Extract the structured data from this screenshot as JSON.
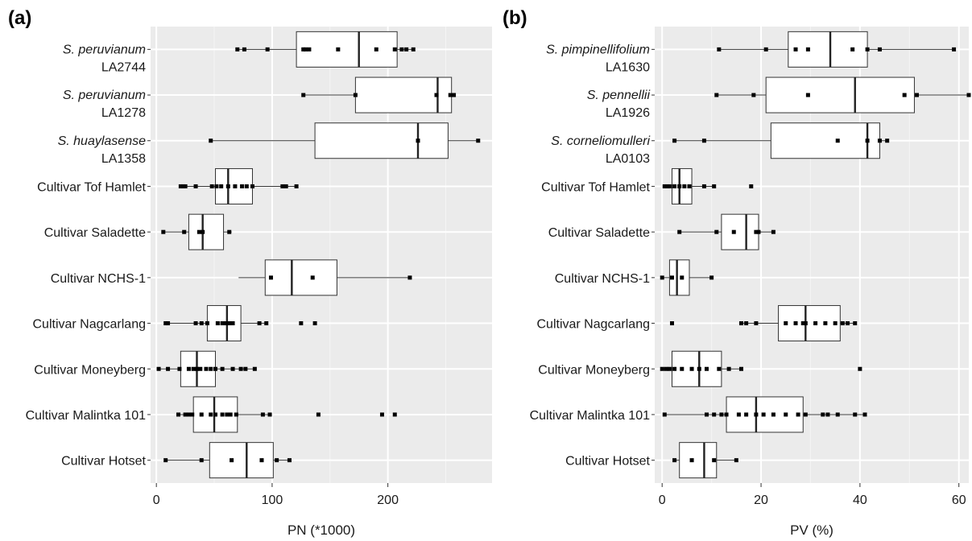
{
  "chart_data": [
    {
      "type": "box",
      "panel_label": "(a)",
      "xlabel": "PN (*1000)",
      "xlim": [
        -5,
        290
      ],
      "xticks": [
        0,
        100,
        200
      ],
      "tick_labels": [
        "0",
        "100",
        "200"
      ],
      "grid": true,
      "categories": [
        {
          "label": [
            "S. peruvianum",
            "LA2744"
          ],
          "italic_first": true,
          "q1": 121,
          "median": 175,
          "q3": 208,
          "whisker_low": 69,
          "whisker_high": 222,
          "points": [
            70,
            76,
            96,
            127,
            129,
            132,
            157,
            190,
            206,
            212,
            216,
            222
          ]
        },
        {
          "label": [
            "S. peruvianum",
            "LA1278"
          ],
          "italic_first": true,
          "q1": 172,
          "median": 243,
          "q3": 255,
          "whisker_low": 126,
          "whisker_high": 258,
          "points": [
            127,
            172,
            242,
            254,
            257
          ]
        },
        {
          "label": [
            "S. huaylasense",
            "LA1358"
          ],
          "italic_first": true,
          "q1": 137,
          "median": 226,
          "q3": 252,
          "whisker_low": 47,
          "whisker_high": 278,
          "points": [
            47,
            226,
            278
          ]
        },
        {
          "label": [
            "Cultivar Tof Hamlet"
          ],
          "italic_first": false,
          "q1": 51,
          "median": 62,
          "q3": 83,
          "whisker_low": 21,
          "whisker_high": 121,
          "points": [
            21,
            23,
            25,
            34,
            48,
            52,
            56,
            62,
            68,
            74,
            78,
            83,
            109,
            112,
            121
          ]
        },
        {
          "label": [
            "Cultivar Saladette"
          ],
          "italic_first": false,
          "q1": 28,
          "median": 40,
          "q3": 58,
          "whisker_low": 6,
          "whisker_high": 65,
          "points": [
            6,
            24,
            37,
            40,
            63
          ]
        },
        {
          "label": [
            "Cultivar NCHS-1"
          ],
          "italic_first": false,
          "q1": 94,
          "median": 117,
          "q3": 156,
          "whisker_low": 71,
          "whisker_high": 219,
          "points": [
            99,
            135,
            219
          ]
        },
        {
          "label": [
            "Cultivar Nagcarlang"
          ],
          "italic_first": false,
          "q1": 44,
          "median": 61,
          "q3": 73,
          "whisker_low": 8,
          "whisker_high": 96,
          "points": [
            8,
            10,
            34,
            39,
            44,
            53,
            57,
            60,
            63,
            66,
            89,
            95,
            125,
            137
          ]
        },
        {
          "label": [
            "Cultivar Moneyberg"
          ],
          "italic_first": false,
          "q1": 21,
          "median": 35,
          "q3": 51,
          "whisker_low": 2,
          "whisker_high": 85,
          "points": [
            2,
            10,
            20,
            28,
            32,
            35,
            38,
            43,
            47,
            51,
            57,
            66,
            73,
            77,
            85
          ]
        },
        {
          "label": [
            "Cultivar Malintka 101"
          ],
          "italic_first": false,
          "q1": 32,
          "median": 50,
          "q3": 70,
          "whisker_low": 19,
          "whisker_high": 98,
          "points": [
            19,
            25,
            28,
            31,
            39,
            47,
            51,
            57,
            61,
            64,
            69,
            92,
            98,
            140,
            195,
            206
          ]
        },
        {
          "label": [
            "Cultivar Hotset"
          ],
          "italic_first": false,
          "q1": 46,
          "median": 78,
          "q3": 101,
          "whisker_low": 8,
          "whisker_high": 115,
          "points": [
            8,
            39,
            65,
            91,
            104,
            115
          ]
        }
      ]
    },
    {
      "type": "box",
      "panel_label": "(b)",
      "xlabel": "PV (%)",
      "xlim": [
        -1.5,
        62
      ],
      "xticks": [
        0,
        20,
        40,
        60
      ],
      "tick_labels": [
        "0",
        "20",
        "40",
        "60"
      ],
      "grid": true,
      "categories": [
        {
          "label": [
            "S. pimpinellifolium",
            "LA1630"
          ],
          "italic_first": true,
          "q1": 25.5,
          "median": 34,
          "q3": 41.5,
          "whisker_low": 11.5,
          "whisker_high": 59,
          "points": [
            11.5,
            21,
            27,
            29.5,
            38.5,
            41.5,
            44,
            59
          ]
        },
        {
          "label": [
            "S. pennellii",
            "LA1926"
          ],
          "italic_first": true,
          "q1": 21,
          "median": 39,
          "q3": 51,
          "whisker_low": 11,
          "whisker_high": 62,
          "points": [
            11,
            18.5,
            29.5,
            49,
            51.5,
            62
          ]
        },
        {
          "label": [
            "S. corneliomulleri",
            "LA0103"
          ],
          "italic_first": true,
          "q1": 22,
          "median": 41.5,
          "q3": 44,
          "whisker_low": 2.5,
          "whisker_high": 45.5,
          "points": [
            2.5,
            8.5,
            35.5,
            41.5,
            44,
            45.5
          ]
        },
        {
          "label": [
            "Cultivar Tof Hamlet"
          ],
          "italic_first": false,
          "q1": 2,
          "median": 3.5,
          "q3": 6,
          "whisker_low": 0.5,
          "whisker_high": 10.5,
          "points": [
            0.5,
            1,
            1.5,
            2.5,
            3.5,
            4.5,
            5.5,
            8.5,
            10.5,
            18
          ]
        },
        {
          "label": [
            "Cultivar Saladette"
          ],
          "italic_first": false,
          "q1": 12,
          "median": 17,
          "q3": 19.5,
          "whisker_low": 3.5,
          "whisker_high": 22.5,
          "points": [
            3.5,
            11,
            14.5,
            19,
            19.5,
            22.5
          ]
        },
        {
          "label": [
            "Cultivar NCHS-1"
          ],
          "italic_first": false,
          "q1": 1.5,
          "median": 3,
          "q3": 5.5,
          "whisker_low": 0,
          "whisker_high": 10,
          "points": [
            0,
            2,
            4,
            10
          ]
        },
        {
          "label": [
            "Cultivar Nagcarlang"
          ],
          "italic_first": false,
          "q1": 23.5,
          "median": 29,
          "q3": 36,
          "whisker_low": 16,
          "whisker_high": 39,
          "points": [
            2,
            16,
            17,
            19,
            25,
            27,
            28.5,
            29,
            31,
            33,
            35,
            36.5,
            37.5,
            39
          ]
        },
        {
          "label": [
            "Cultivar Moneyberg"
          ],
          "italic_first": false,
          "q1": 2,
          "median": 7.5,
          "q3": 12,
          "whisker_low": 0,
          "whisker_high": 16,
          "points": [
            0,
            0.8,
            1.5,
            2.5,
            4,
            6,
            7.5,
            9,
            11.5,
            13.5,
            16,
            40
          ]
        },
        {
          "label": [
            "Cultivar Malintka 101"
          ],
          "italic_first": false,
          "q1": 13,
          "median": 19,
          "q3": 28.5,
          "whisker_low": 0.5,
          "whisker_high": 41,
          "points": [
            0.5,
            9,
            10.5,
            12,
            13,
            15.5,
            17,
            19,
            20.5,
            22.5,
            25,
            27.5,
            29,
            32.5,
            33.5,
            35.5,
            39,
            41
          ]
        },
        {
          "label": [
            "Cultivar Hotset"
          ],
          "italic_first": false,
          "q1": 3.5,
          "median": 8.5,
          "q3": 11,
          "whisker_low": 2.5,
          "whisker_high": 15,
          "points": [
            2.5,
            6,
            10.5,
            15
          ]
        }
      ]
    }
  ]
}
